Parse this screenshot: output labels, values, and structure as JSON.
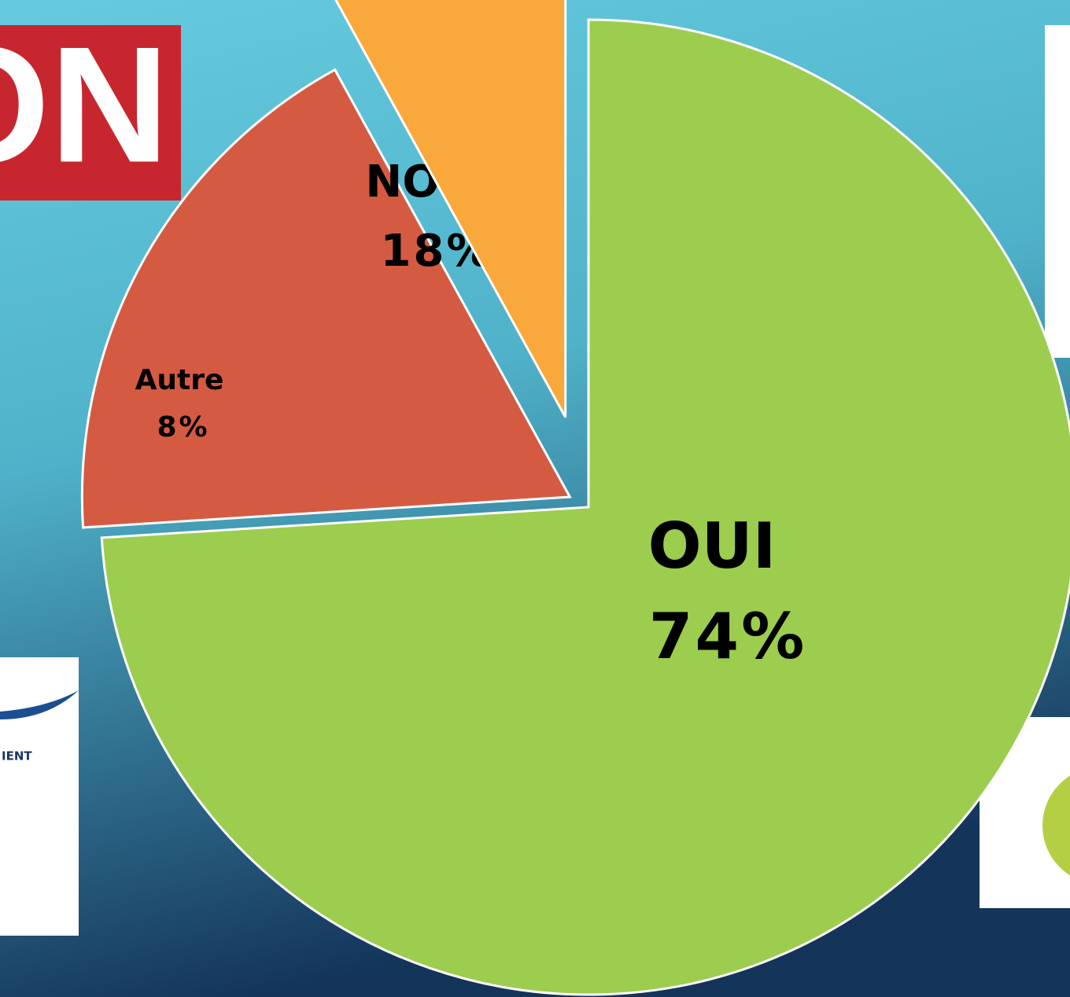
{
  "chart_data": {
    "type": "pie",
    "categories": [
      "OUI",
      "NON",
      "Autre"
    ],
    "values": [
      74,
      18,
      8
    ],
    "value_labels": [
      "74%",
      "18%",
      "8%"
    ],
    "colors": [
      "#9ccd4e",
      "#d45b42",
      "#f9a83c"
    ],
    "start_angle": 0,
    "direction": "clockwise"
  },
  "logos": [
    {
      "text": "ON"
    },
    {
      "text": "IENT"
    }
  ]
}
